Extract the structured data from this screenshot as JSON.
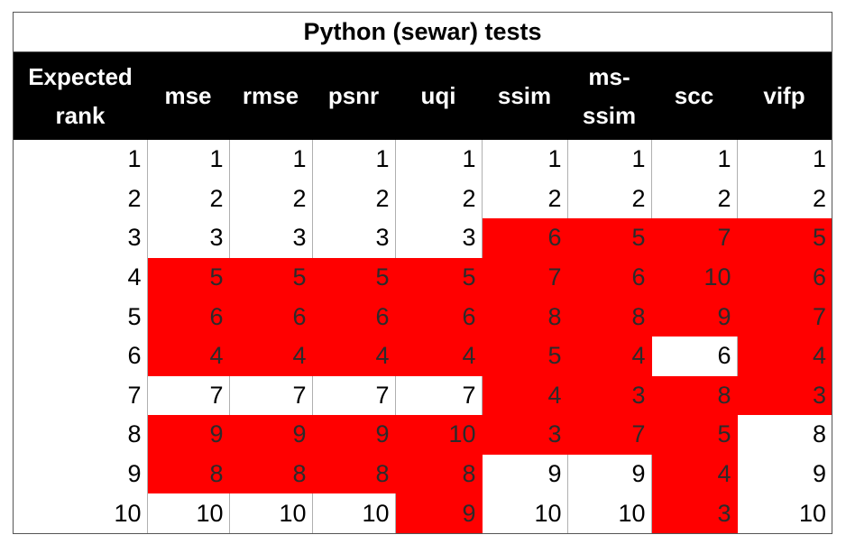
{
  "title": "Python (sewar) tests",
  "headers": [
    "Expected rank",
    "mse",
    "rmse",
    "psnr",
    "uqi",
    "ssim",
    "ms-ssim",
    "scc",
    "vifp"
  ],
  "rows": [
    [
      "1",
      "1",
      "1",
      "1",
      "1",
      "1",
      "1",
      "1",
      "1"
    ],
    [
      "2",
      "2",
      "2",
      "2",
      "2",
      "2",
      "2",
      "2",
      "2"
    ],
    [
      "3",
      "3",
      "3",
      "3",
      "3",
      "6",
      "5",
      "7",
      "5"
    ],
    [
      "4",
      "5",
      "5",
      "5",
      "5",
      "7",
      "6",
      "10",
      "6"
    ],
    [
      "5",
      "6",
      "6",
      "6",
      "6",
      "8",
      "8",
      "9",
      "7"
    ],
    [
      "6",
      "4",
      "4",
      "4",
      "4",
      "5",
      "4",
      "6",
      "4"
    ],
    [
      "7",
      "7",
      "7",
      "7",
      "7",
      "4",
      "3",
      "8",
      "3"
    ],
    [
      "8",
      "9",
      "9",
      "9",
      "10",
      "3",
      "7",
      "5",
      "8"
    ],
    [
      "9",
      "8",
      "8",
      "8",
      "8",
      "9",
      "9",
      "4",
      "9"
    ],
    [
      "10",
      "10",
      "10",
      "10",
      "9",
      "10",
      "10",
      "3",
      "10"
    ]
  ],
  "highlight": [
    [
      0,
      0,
      0,
      0,
      0,
      0,
      0,
      0,
      0
    ],
    [
      0,
      0,
      0,
      0,
      0,
      0,
      0,
      0,
      0
    ],
    [
      0,
      0,
      0,
      0,
      0,
      1,
      1,
      1,
      1
    ],
    [
      0,
      1,
      1,
      1,
      1,
      1,
      1,
      1,
      1
    ],
    [
      0,
      1,
      1,
      1,
      1,
      1,
      1,
      1,
      1
    ],
    [
      0,
      1,
      1,
      1,
      1,
      1,
      1,
      0,
      1
    ],
    [
      0,
      0,
      0,
      0,
      0,
      1,
      1,
      1,
      1
    ],
    [
      0,
      1,
      1,
      1,
      1,
      1,
      1,
      1,
      0
    ],
    [
      0,
      1,
      1,
      1,
      1,
      0,
      0,
      1,
      0
    ],
    [
      0,
      0,
      0,
      0,
      1,
      0,
      0,
      1,
      0
    ]
  ],
  "colors": {
    "highlight": "#ff0000",
    "header_bg": "#000000",
    "header_text": "#ffffff"
  }
}
